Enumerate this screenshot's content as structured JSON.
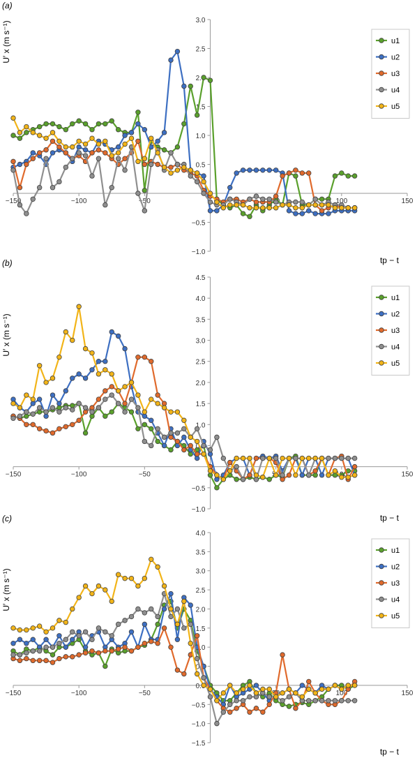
{
  "colors": {
    "u1": "#5aa02c",
    "u2": "#3d6fc2",
    "u3": "#e06a2c",
    "u4": "#8f8f8f",
    "u5": "#f2b418",
    "axis": "#999999"
  },
  "chart_data": [
    {
      "type": "line",
      "panel_label": "(a)",
      "ylabel": "U′ x (m s⁻¹)",
      "xlabel": "tp − t",
      "xlim": [
        -150,
        150
      ],
      "ylim": [
        -1.0,
        3.0
      ],
      "xticks": [
        "−150",
        "−100",
        "−50",
        "0",
        "50",
        "100",
        "150"
      ],
      "yticks": [
        "−1.0",
        "−0.5",
        "0.5",
        "1.0",
        "1.5",
        "2.0",
        "2.5",
        "3.0"
      ],
      "grid": false,
      "legend": "top-right",
      "x": [
        -150,
        -145,
        -140,
        -135,
        -130,
        -125,
        -120,
        -115,
        -110,
        -105,
        -100,
        -95,
        -90,
        -85,
        -80,
        -75,
        -70,
        -65,
        -60,
        -55,
        -50,
        -45,
        -40,
        -35,
        -30,
        -25,
        -20,
        -15,
        -10,
        -5,
        0,
        5,
        10,
        15,
        20,
        25,
        30,
        35,
        40,
        45,
        50,
        55,
        60,
        65,
        70,
        75,
        80,
        85,
        90,
        95,
        100,
        105,
        110
      ],
      "series": [
        {
          "name": "u1",
          "values": [
            1.0,
            0.95,
            1.05,
            1.1,
            1.15,
            1.2,
            1.2,
            1.15,
            1.1,
            1.2,
            1.25,
            1.2,
            1.1,
            1.2,
            1.2,
            1.25,
            1.1,
            1.05,
            1.05,
            1.4,
            0.05,
            0.9,
            0.8,
            0.75,
            0.7,
            0.8,
            1.2,
            1.85,
            1.35,
            2.0,
            1.95,
            -0.1,
            -0.2,
            -0.25,
            -0.2,
            -0.35,
            -0.4,
            -0.2,
            -0.3,
            -0.2,
            -0.1,
            -0.2,
            0.35,
            0.3,
            -0.2,
            -0.2,
            -0.1,
            -0.1,
            -0.1,
            0.3,
            0.35,
            0.3,
            0.3
          ]
        },
        {
          "name": "u2",
          "values": [
            0.45,
            0.5,
            0.55,
            0.7,
            0.65,
            0.5,
            0.7,
            0.75,
            0.7,
            0.55,
            0.8,
            0.75,
            0.7,
            0.9,
            0.85,
            0.75,
            0.8,
            1.0,
            1.05,
            1.2,
            1.1,
            0.8,
            0.9,
            1.05,
            2.3,
            2.45,
            1.85,
            0.4,
            0.35,
            0.3,
            -0.3,
            -0.3,
            -0.2,
            0.1,
            0.35,
            0.4,
            0.4,
            0.4,
            0.4,
            0.4,
            0.4,
            0.35,
            -0.3,
            -0.35,
            -0.35,
            -0.3,
            -0.35,
            -0.35,
            -0.35,
            -0.3,
            -0.3,
            -0.3,
            -0.3
          ]
        },
        {
          "name": "u3",
          "values": [
            0.55,
            0.1,
            0.5,
            0.6,
            0.7,
            0.75,
            0.9,
            0.8,
            0.7,
            0.6,
            0.65,
            0.55,
            0.7,
            0.75,
            0.7,
            0.6,
            0.5,
            0.6,
            0.7,
            0.9,
            0.5,
            0.55,
            0.5,
            0.45,
            0.45,
            0.5,
            0.4,
            0.35,
            0.3,
            0.05,
            -0.05,
            -0.1,
            -0.15,
            -0.1,
            -0.1,
            -0.15,
            -0.1,
            -0.15,
            -0.15,
            -0.15,
            -0.05,
            0.3,
            0.35,
            0.4,
            0.35,
            0.35,
            -0.2,
            -0.3,
            -0.25,
            -0.2,
            -0.25,
            -0.25,
            -0.25
          ]
        },
        {
          "name": "u4",
          "values": [
            0.4,
            -0.2,
            -0.35,
            -0.1,
            0.1,
            0.6,
            0.1,
            0.2,
            0.45,
            0.6,
            0.7,
            0.65,
            0.3,
            0.6,
            -0.2,
            0.1,
            0.6,
            0.4,
            0.8,
            0.0,
            -0.3,
            0.5,
            0.75,
            0.4,
            0.7,
            0.5,
            0.5,
            0.3,
            0.2,
            0.0,
            -0.15,
            -0.2,
            -0.2,
            -0.1,
            -0.15,
            -0.2,
            -0.1,
            -0.05,
            -0.1,
            -0.1,
            -0.15,
            -0.2,
            -0.15,
            -0.15,
            -0.15,
            -0.2,
            -0.1,
            -0.2,
            -0.15,
            -0.2,
            -0.2,
            -0.25,
            -0.25
          ]
        },
        {
          "name": "u5",
          "values": [
            1.3,
            1.05,
            1.15,
            1.05,
            1.0,
            0.95,
            1.05,
            0.9,
            0.8,
            0.8,
            0.9,
            0.85,
            0.95,
            0.85,
            0.9,
            0.65,
            0.7,
            0.85,
            0.95,
            0.55,
            0.6,
            0.95,
            0.7,
            0.45,
            0.35,
            0.4,
            0.45,
            0.4,
            0.35,
            0.2,
            0.0,
            -0.15,
            -0.25,
            -0.2,
            -0.2,
            -0.2,
            -0.25,
            -0.25,
            -0.25,
            -0.25,
            -0.25,
            -0.2,
            -0.2,
            -0.25,
            -0.25,
            -0.2,
            -0.2,
            -0.2,
            -0.2,
            -0.25,
            -0.25,
            -0.25,
            -0.25
          ]
        }
      ]
    },
    {
      "type": "line",
      "panel_label": "(b)",
      "ylabel": "U′ x (m s⁻¹)",
      "xlabel": "tp − t",
      "xlim": [
        -150,
        150
      ],
      "ylim": [
        -1.0,
        4.5
      ],
      "xticks": [
        "−150",
        "−100",
        "−50",
        "0",
        "50",
        "100",
        "150"
      ],
      "yticks": [
        "−1.0",
        "−0.5",
        "0.5",
        "1.0",
        "1.5",
        "2.0",
        "2.5",
        "3.0",
        "3.5",
        "4.0",
        "4.5"
      ],
      "grid": false,
      "legend": "top-right",
      "x": [
        -150,
        -145,
        -140,
        -135,
        -130,
        -125,
        -120,
        -115,
        -110,
        -105,
        -100,
        -95,
        -90,
        -85,
        -80,
        -75,
        -70,
        -65,
        -60,
        -55,
        -50,
        -45,
        -40,
        -35,
        -30,
        -25,
        -20,
        -15,
        -10,
        -5,
        0,
        5,
        10,
        15,
        20,
        25,
        30,
        35,
        40,
        45,
        50,
        55,
        60,
        65,
        70,
        75,
        80,
        85,
        90,
        95,
        100,
        105,
        110
      ],
      "series": [
        {
          "name": "u1",
          "values": [
            1.2,
            1.15,
            1.2,
            1.25,
            1.3,
            1.3,
            1.35,
            1.4,
            1.45,
            1.45,
            1.5,
            0.8,
            1.2,
            1.4,
            1.2,
            1.3,
            1.5,
            1.4,
            1.3,
            0.9,
            1.0,
            0.9,
            0.6,
            0.5,
            0.4,
            0.6,
            0.5,
            0.3,
            0.4,
            0.5,
            -0.2,
            -0.5,
            -0.3,
            -0.2,
            -0.3,
            -0.3,
            -0.25,
            -0.3,
            -0.25,
            -0.3,
            -0.2,
            -0.25,
            0.2,
            0.25,
            -0.2,
            -0.2,
            -0.2,
            0.2,
            -0.2,
            -0.2,
            -0.2,
            -0.1,
            -0.1
          ]
        },
        {
          "name": "u2",
          "values": [
            1.6,
            1.4,
            1.3,
            1.5,
            1.6,
            1.2,
            1.7,
            1.5,
            1.8,
            2.1,
            2.2,
            2.1,
            2.3,
            2.5,
            2.5,
            3.2,
            3.1,
            2.8,
            1.9,
            1.3,
            1.2,
            1.1,
            0.8,
            0.5,
            0.9,
            0.5,
            0.7,
            0.4,
            0.2,
            0.6,
            0.3,
            -0.3,
            -0.2,
            0.1,
            0.2,
            0.2,
            -0.2,
            0.2,
            0.25,
            0.2,
            0.25,
            -0.1,
            0.2,
            0.2,
            -0.2,
            0.2,
            0.2,
            -0.2,
            0.2,
            0.2,
            0.2,
            0.2,
            -0.2
          ]
        },
        {
          "name": "u3",
          "values": [
            1.2,
            1.15,
            1.0,
            1.0,
            0.9,
            0.85,
            0.8,
            0.9,
            0.95,
            1.0,
            1.1,
            1.3,
            1.4,
            1.6,
            1.8,
            1.9,
            1.8,
            1.5,
            2.0,
            2.6,
            2.6,
            2.5,
            1.7,
            1.5,
            0.7,
            0.6,
            0.4,
            0.5,
            0.3,
            0.3,
            0.0,
            -0.2,
            -0.3,
            0.1,
            -0.1,
            -0.3,
            -0.2,
            0.2,
            0.2,
            0.2,
            0.1,
            -0.3,
            -0.2,
            0.2,
            0.2,
            -0.2,
            -0.1,
            0.2,
            -0.2,
            0.2,
            0.25,
            -0.3,
            0.0
          ]
        },
        {
          "name": "u4",
          "values": [
            1.15,
            1.2,
            1.3,
            1.25,
            1.4,
            1.3,
            1.4,
            1.3,
            1.4,
            1.35,
            1.5,
            1.4,
            1.3,
            1.4,
            1.6,
            1.7,
            1.5,
            1.3,
            1.6,
            1.4,
            0.6,
            0.5,
            0.9,
            0.7,
            0.8,
            0.8,
            0.9,
            0.7,
            0.9,
            0.5,
            0.4,
            0.7,
            0.2,
            -0.1,
            0.0,
            -0.3,
            0.2,
            -0.3,
            0.2,
            0.2,
            0.2,
            -0.2,
            0.2,
            0.2,
            0.2,
            -0.2,
            0.2,
            0.2,
            0.2,
            0.2,
            0.2,
            0.2,
            0.2
          ]
        },
        {
          "name": "u5",
          "values": [
            1.5,
            1.4,
            1.7,
            1.6,
            2.4,
            2.0,
            2.1,
            2.6,
            3.2,
            3.0,
            3.8,
            2.8,
            2.7,
            2.2,
            2.3,
            2.2,
            1.8,
            1.9,
            2.0,
            1.7,
            1.3,
            1.6,
            1.5,
            1.4,
            1.3,
            1.3,
            1.1,
            0.7,
            0.6,
            0.3,
            -0.1,
            -0.2,
            -0.3,
            -0.1,
            0.2,
            0.2,
            0.2,
            -0.2,
            -0.25,
            0.2,
            -0.2,
            0.2,
            0.2,
            -0.2,
            0.2,
            0.2,
            0.2,
            0.2,
            -0.2,
            -0.1,
            -0.25,
            -0.25,
            -0.2
          ]
        }
      ]
    },
    {
      "type": "line",
      "panel_label": "(c)",
      "ylabel": "U′ x (m s⁻¹)",
      "xlabel": "tp − t",
      "xlim": [
        -150,
        150
      ],
      "ylim": [
        -1.5,
        4.0
      ],
      "xticks": [
        "−150",
        "−100",
        "−50",
        "0",
        "50",
        "100",
        "150"
      ],
      "yticks": [
        "−1.5",
        "−1.0",
        "−0.5",
        "0.0",
        "0.5",
        "1.0",
        "1.5",
        "2.0",
        "2.5",
        "3.0",
        "3.5",
        "4.0"
      ],
      "grid": false,
      "legend": "top-right",
      "x": [
        -150,
        -145,
        -140,
        -135,
        -130,
        -125,
        -120,
        -115,
        -110,
        -105,
        -100,
        -95,
        -90,
        -85,
        -80,
        -75,
        -70,
        -65,
        -60,
        -55,
        -50,
        -45,
        -40,
        -35,
        -30,
        -25,
        -20,
        -15,
        -10,
        -5,
        0,
        5,
        10,
        15,
        20,
        25,
        30,
        35,
        40,
        45,
        50,
        55,
        60,
        65,
        70,
        75,
        80,
        85,
        90,
        95,
        100,
        105,
        110
      ],
      "series": [
        {
          "name": "u1",
          "values": [
            0.9,
            0.8,
            0.95,
            0.9,
            1.0,
            0.9,
            0.8,
            1.0,
            1.0,
            1.1,
            1.2,
            0.9,
            0.8,
            0.85,
            0.5,
            0.95,
            0.85,
            0.9,
            0.9,
            1.0,
            1.05,
            1.2,
            1.6,
            2.1,
            2.2,
            1.5,
            2.0,
            1.7,
            0.9,
            0.5,
            0.0,
            -0.2,
            -0.4,
            -0.4,
            -0.2,
            0.0,
            0.1,
            -0.2,
            -0.3,
            -0.2,
            -0.4,
            -0.5,
            -0.55,
            -0.5,
            -0.45,
            -0.5,
            -0.4,
            -0.3,
            -0.1,
            0.0,
            0.0,
            -0.1,
            0.0
          ]
        },
        {
          "name": "u2",
          "values": [
            1.1,
            1.2,
            1.1,
            1.2,
            1.0,
            1.2,
            1.0,
            1.3,
            1.0,
            1.2,
            1.4,
            1.0,
            1.3,
            1.4,
            1.0,
            1.2,
            1.0,
            1.1,
            1.4,
            1.0,
            1.6,
            1.2,
            1.2,
            2.0,
            2.4,
            1.2,
            2.3,
            2.1,
            1.0,
            0.5,
            -0.1,
            -0.3,
            -0.5,
            0.0,
            -0.3,
            -0.2,
            -0.1,
            0.0,
            -0.2,
            -0.4,
            -0.3,
            -0.2,
            -0.1,
            -0.2,
            0.0,
            -0.1,
            -0.2,
            0.0,
            -0.1,
            0.0,
            -0.1,
            0.0,
            0.0
          ]
        },
        {
          "name": "u3",
          "values": [
            0.7,
            0.65,
            0.7,
            0.65,
            0.65,
            0.65,
            0.6,
            0.7,
            0.75,
            0.75,
            0.8,
            0.85,
            0.9,
            0.85,
            0.9,
            0.9,
            0.95,
            1.0,
            0.9,
            1.0,
            1.1,
            1.15,
            1.1,
            1.5,
            1.0,
            0.4,
            0.3,
            0.8,
            1.3,
            0.2,
            -0.1,
            -0.4,
            -0.6,
            -0.7,
            -0.6,
            -0.5,
            -0.7,
            -0.6,
            -0.7,
            -0.5,
            -0.2,
            0.8,
            -0.1,
            -0.6,
            -0.4,
            0.1,
            -0.2,
            -0.4,
            -0.5,
            -0.5,
            -0.4,
            -0.1,
            0.1
          ]
        },
        {
          "name": "u4",
          "values": [
            0.8,
            0.8,
            0.85,
            0.9,
            0.9,
            1.0,
            1.0,
            1.1,
            1.2,
            1.4,
            1.3,
            1.4,
            1.2,
            1.5,
            1.4,
            1.3,
            1.6,
            1.7,
            1.8,
            2.0,
            1.9,
            2.0,
            1.8,
            2.4,
            1.8,
            2.0,
            1.5,
            1.6,
            0.7,
            0.2,
            -0.3,
            -1.0,
            -0.7,
            -0.5,
            -0.4,
            -0.4,
            -0.3,
            -0.3,
            -0.2,
            -0.3,
            -0.3,
            -0.4,
            -0.3,
            -0.2,
            -0.4,
            -0.4,
            -0.4,
            -0.4,
            -0.4,
            -0.4,
            -0.4,
            -0.4,
            -0.4
          ]
        },
        {
          "name": "u5",
          "values": [
            1.5,
            1.45,
            1.45,
            1.5,
            1.55,
            1.4,
            1.5,
            1.7,
            1.65,
            2.0,
            2.3,
            2.6,
            2.4,
            2.6,
            2.5,
            2.2,
            2.9,
            2.8,
            2.8,
            2.6,
            2.8,
            3.3,
            3.1,
            2.6,
            2.0,
            1.6,
            2.2,
            1.1,
            0.3,
            0.0,
            -0.1,
            -0.4,
            -0.2,
            0.0,
            -0.2,
            -0.1,
            0.0,
            -0.2,
            -0.1,
            -0.1,
            -0.3,
            -0.2,
            -0.1,
            -0.2,
            -0.3,
            -0.1,
            -0.2,
            -0.1,
            -0.1,
            0.0,
            -0.1,
            0.0,
            0.0
          ]
        }
      ]
    }
  ]
}
